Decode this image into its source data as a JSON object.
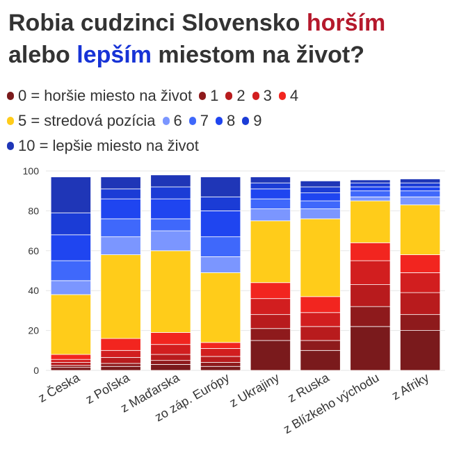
{
  "title": {
    "part1": "Robia cudzinci Slovensko ",
    "red_word": "horším",
    "part2": "alebo ",
    "blue_word": "lepším",
    "part3": " miestom na život?"
  },
  "colors": {
    "title_red": "#b5192c",
    "title_blue": "#1733d6",
    "grid": "#e6e6e6"
  },
  "legend": {
    "rows": [
      [
        {
          "label": "0 = horšie miesto na život",
          "color": "#7a1a1c"
        },
        {
          "label": "1",
          "color": "#8e1a1c"
        },
        {
          "label": "2",
          "color": "#b81b1d"
        },
        {
          "label": "3",
          "color": "#d21e1f"
        },
        {
          "label": "4",
          "color": "#f2251f"
        }
      ],
      [
        {
          "label": "5 = stredová pozícia",
          "color": "#ffcc1a"
        },
        {
          "label": "6",
          "color": "#7b96ff"
        },
        {
          "label": "7",
          "color": "#3f68fb"
        },
        {
          "label": "8",
          "color": "#1f45f0"
        },
        {
          "label": "9",
          "color": "#1b3cd6"
        }
      ],
      [
        {
          "label": "10 = lepšie miesto na život",
          "color": "#1f36b7"
        }
      ]
    ]
  },
  "chart_data": {
    "type": "bar",
    "stacked": true,
    "title": "Robia cudzinci Slovensko horším alebo lepším miestom na život?",
    "xlabel": "",
    "ylabel": "",
    "ylim": [
      0,
      100
    ],
    "yticks": [
      0,
      20,
      40,
      60,
      80,
      100
    ],
    "grid": true,
    "categories": [
      "z Česka",
      "z Poľska",
      "z Maďarska",
      "zo záp. Európy",
      "z Ukrajiny",
      "z Ruska",
      "z Blízkeho východu",
      "z Afriky"
    ],
    "series": [
      {
        "name": "0 = horšie miesto na život",
        "color": "#7a1a1c",
        "values": [
          1.5,
          2,
          3,
          2,
          15,
          10,
          22,
          20
        ]
      },
      {
        "name": "1",
        "color": "#8e1a1c",
        "values": [
          1,
          1.5,
          2,
          2,
          6,
          5,
          10,
          8
        ]
      },
      {
        "name": "2",
        "color": "#b81b1d",
        "values": [
          1.5,
          3,
          3,
          3,
          7,
          7,
          11,
          11
        ]
      },
      {
        "name": "3",
        "color": "#d21e1f",
        "values": [
          1.5,
          3.5,
          5,
          4,
          8,
          7,
          12,
          10
        ]
      },
      {
        "name": "4",
        "color": "#f2251f",
        "values": [
          2.5,
          6,
          6,
          3,
          8,
          8,
          9,
          9
        ]
      },
      {
        "name": "5 = stredová pozícia",
        "color": "#ffcc1a",
        "values": [
          30,
          42,
          41,
          35,
          31,
          39,
          21,
          25
        ]
      },
      {
        "name": "6",
        "color": "#7b96ff",
        "values": [
          7,
          9,
          10,
          8,
          6,
          5,
          2,
          4
        ]
      },
      {
        "name": "7",
        "color": "#3f68fb",
        "values": [
          10,
          9,
          6,
          10,
          5,
          4,
          3,
          3
        ]
      },
      {
        "name": "8",
        "color": "#1f45f0",
        "values": [
          13,
          10,
          10,
          13,
          5,
          4,
          2,
          2
        ]
      },
      {
        "name": "9",
        "color": "#1b3cd6",
        "values": [
          11,
          5,
          6,
          7,
          3,
          3,
          2,
          2
        ]
      },
      {
        "name": "10 = lepšie miesto na život",
        "color": "#1f36b7",
        "values": [
          18,
          6,
          6,
          10,
          3,
          3,
          1.5,
          2
        ]
      }
    ]
  }
}
